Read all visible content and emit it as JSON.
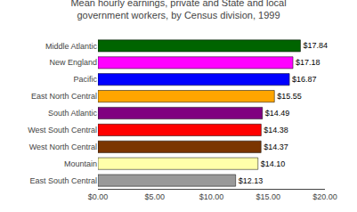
{
  "chart_data": {
    "type": "bar",
    "orientation": "horizontal",
    "title": "Mean hourly earnings, private and State and local\ngovernment workers, by Census division, 1999",
    "categories": [
      "East South Central",
      "Mountain",
      "West North Central",
      "West South Central",
      "South Atlantic",
      "East North Central",
      "Pacific",
      "New England",
      "Middle Atlantic"
    ],
    "values": [
      12.13,
      14.1,
      14.37,
      14.38,
      14.49,
      15.55,
      16.87,
      17.18,
      17.84
    ],
    "value_labels": [
      "$12.13",
      "$14.10",
      "$14.37",
      "$14.38",
      "$14.49",
      "$15.55",
      "$16.87",
      "$17.18",
      "$17.84"
    ],
    "colors": [
      "#999999",
      "#ffffaa",
      "#7b3500",
      "#ff0000",
      "#800080",
      "#ffa500",
      "#0000ff",
      "#ff00ff",
      "#006400"
    ],
    "xlim": [
      0,
      20
    ],
    "xticks": [
      {
        "value": 0,
        "label": "$0.00"
      },
      {
        "value": 5,
        "label": "$5.00"
      },
      {
        "value": 10,
        "label": "$10.00"
      },
      {
        "value": 15,
        "label": "$15.00"
      },
      {
        "value": 20,
        "label": "$20.00"
      }
    ],
    "data_labels": true,
    "grid": false
  }
}
